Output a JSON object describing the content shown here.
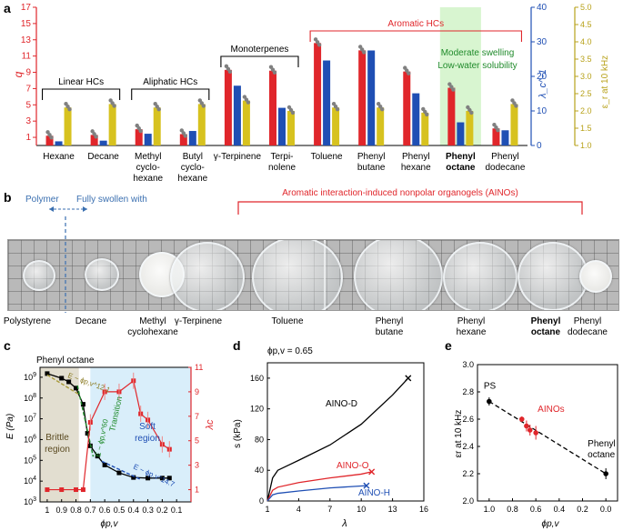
{
  "colors": {
    "red": "#e0262b",
    "blue": "#1f4fb4",
    "yellow": "#d7c21f",
    "gray": "#808080",
    "green_band": "#d8f5d0",
    "brown_band": "#e2ded0",
    "blue_band": "#d9eefa"
  },
  "panel_labels": {
    "a": "a",
    "b": "b",
    "c": "c",
    "d": "d",
    "e": "e"
  },
  "panel_a": {
    "ylabel_left": "q",
    "ylabel_mid": "λ_c^-1",
    "ylabel_right": "ε_r at 10 kHz",
    "left_ticks": [
      "1",
      "3",
      "5",
      "7",
      "9",
      "11",
      "13",
      "15",
      "17"
    ],
    "mid_ticks": [
      "0",
      "10",
      "20",
      "30",
      "40"
    ],
    "right_ticks": [
      "1.0",
      "1.5",
      "2.0",
      "2.5",
      "3.0",
      "3.5",
      "4.0",
      "4.5",
      "5.0"
    ],
    "groups": {
      "linear": "Linear HCs",
      "aliphatic": "Aliphatic HCs",
      "monoterpenes": "Monoterpenes",
      "aromatic": "Aromatic HCs"
    },
    "highlight_line1": "Moderate swelling",
    "highlight_line2": "Low-water solubility",
    "solvent_labels": [
      [
        "Hexane"
      ],
      [
        "Decane"
      ],
      [
        "Methyl",
        "cyclo-",
        "hexane"
      ],
      [
        "Butyl",
        "cyclo-",
        "hexane"
      ],
      [
        "γ-Terpinene"
      ],
      [
        "Terpi-",
        "nolene"
      ],
      [
        "Toluene"
      ],
      [
        "Phenyl",
        "butane"
      ],
      [
        "Phenyl",
        "hexane"
      ],
      [
        "Phenyl",
        "octane"
      ],
      [
        "Phenyl",
        "dodecane"
      ]
    ]
  },
  "panel_b": {
    "polymer": "Polymer",
    "swollen": "Fully swollen with",
    "aino_title": "Aromatic interaction-induced nonpolar organogels (AINOs)",
    "labels": [
      [
        "Polystyrene"
      ],
      [
        "Decane"
      ],
      [
        "Methyl",
        "cyclohexane"
      ],
      [
        "γ-Terpinene"
      ],
      [
        "Toluene"
      ],
      [
        "Phenyl",
        "butane"
      ],
      [
        "Phenyl",
        "hexane"
      ],
      [
        "Phenyl",
        "octane"
      ],
      [
        "Phenyl",
        "dodecane"
      ]
    ]
  },
  "panel_c": {
    "title": "Phenyl octane",
    "ylabel": "E (Pa)",
    "ylabel_right": "λc",
    "xlabel": "ϕp,v",
    "x_ticks": [
      "1",
      "0.9",
      "0.8",
      "0.7",
      "0.6",
      "0.5",
      "0.4",
      "0.3",
      "0.2",
      "0.1"
    ],
    "y_ticks": [
      "10^3",
      "10^4",
      "10^5",
      "10^6",
      "10^7",
      "10^8",
      "10^9"
    ],
    "right_ticks": [
      "1",
      "3",
      "5",
      "7",
      "9",
      "11"
    ],
    "brittle": [
      "Brittle",
      "region"
    ],
    "soft": [
      "Soft",
      "region"
    ],
    "transition": "Transition",
    "fit1_text": "E ~ ϕp,v^12.1",
    "fit2_text": "E ~ ϕp,v^60",
    "fit3_text": "E ~ ϕp,v^14.7"
  },
  "panel_d": {
    "annotation": "ϕp,v = 0.65",
    "ylabel": "s (kPa)",
    "xlabel": "λ",
    "x_ticks": [
      "1",
      "4",
      "7",
      "10",
      "13",
      "16"
    ],
    "y_ticks": [
      "0",
      "40",
      "80",
      "120",
      "160"
    ],
    "curves": [
      "AINO-D",
      "AINO-O",
      "AINO-H"
    ]
  },
  "panel_e": {
    "ylabel": "εr at 10 kHz",
    "xlabel": "ϕp,v",
    "x_ticks": [
      "1.0",
      "0.8",
      "0.6",
      "0.4",
      "0.2",
      "0.0"
    ],
    "y_ticks": [
      "2.0",
      "2.2",
      "2.4",
      "2.6",
      "2.8",
      "3.0"
    ],
    "labels": {
      "ps": "PS",
      "ainos": "AINOs",
      "po1": "Phenyl",
      "po2": "octane"
    }
  },
  "chart_data": [
    {
      "type": "bar",
      "panel": "a",
      "categories": [
        "Hexane",
        "Decane",
        "Methyl cyclohexane",
        "Butyl cyclohexane",
        "γ-Terpinene",
        "Terpinolene",
        "Toluene",
        "Phenyl butane",
        "Phenyl hexane",
        "Phenyl octane",
        "Phenyl dodecane"
      ],
      "series": [
        {
          "name": "q",
          "axis": "left",
          "values": [
            1.2,
            1.3,
            2.0,
            1.4,
            9.3,
            9.2,
            12.6,
            11.7,
            9.1,
            7.1,
            2.1
          ]
        },
        {
          "name": "λc^-1",
          "axis": "middle",
          "values": [
            1.2,
            1.4,
            3.4,
            4.2,
            17.3,
            10.9,
            24.6,
            27.5,
            15.1,
            6.7,
            4.4
          ]
        },
        {
          "name": "εr at 10 kHz",
          "axis": "right",
          "values": [
            2.1,
            2.2,
            2.1,
            2.2,
            2.3,
            2.0,
            2.1,
            2.1,
            1.95,
            2.0,
            2.2
          ]
        }
      ],
      "ylim_left": [
        0,
        17
      ],
      "ylim_middle": [
        0,
        40
      ],
      "ylim_right": [
        1.0,
        5.0
      ]
    },
    {
      "type": "line",
      "panel": "c",
      "series": [
        {
          "name": "E (Pa)",
          "axis": "left",
          "x": [
            1.0,
            0.9,
            0.85,
            0.8,
            0.75,
            0.72,
            0.7,
            0.65,
            0.6,
            0.5,
            0.4,
            0.3,
            0.2,
            0.15
          ],
          "y": [
            1500000000.0,
            900000000.0,
            600000000.0,
            300000000.0,
            50000000.0,
            2000000.0,
            500000.0,
            160000.0,
            60000.0,
            25000.0,
            15000.0,
            14000.0,
            14000.0,
            14000.0
          ]
        },
        {
          "name": "λc",
          "axis": "right",
          "x": [
            1.0,
            0.9,
            0.8,
            0.75,
            0.7,
            0.6,
            0.5,
            0.4,
            0.35,
            0.3,
            0.2,
            0.15
          ],
          "y": [
            1.0,
            1.0,
            1.0,
            1.0,
            6.5,
            9.0,
            9.0,
            9.9,
            7.2,
            6.7,
            4.7,
            4.3
          ]
        }
      ],
      "ylim_left": [
        1000.0,
        3000000000.0
      ],
      "ylim_right": [
        0,
        11
      ],
      "xlim": [
        1.05,
        0.0
      ]
    },
    {
      "type": "line",
      "panel": "d",
      "series": [
        {
          "name": "AINO-D",
          "x": [
            1,
            1.5,
            2,
            4,
            7,
            10,
            13,
            14.5
          ],
          "y": [
            0,
            30,
            40,
            53,
            73,
            100,
            138,
            160
          ]
        },
        {
          "name": "AINO-O",
          "x": [
            1,
            1.5,
            2,
            4,
            7,
            10,
            11
          ],
          "y": [
            0,
            14,
            18,
            24,
            30,
            35,
            38
          ]
        },
        {
          "name": "AINO-H",
          "x": [
            1,
            1.5,
            2,
            4,
            7,
            10.5
          ],
          "y": [
            0,
            8,
            10,
            13,
            17,
            20
          ]
        }
      ],
      "xlim": [
        1,
        16
      ],
      "ylim": [
        0,
        180
      ]
    },
    {
      "type": "scatter",
      "panel": "e",
      "series": [
        {
          "name": "PS",
          "x": [
            1.0
          ],
          "y": [
            2.73
          ],
          "err": [
            0.03
          ]
        },
        {
          "name": "AINOs",
          "x": [
            0.72,
            0.68,
            0.65,
            0.6
          ],
          "y": [
            2.6,
            2.55,
            2.52,
            2.5
          ],
          "err": [
            0.02,
            0.04,
            0.04,
            0.05
          ]
        },
        {
          "name": "Phenyl octane",
          "x": [
            0.0
          ],
          "y": [
            2.2
          ],
          "err": [
            0.04
          ]
        },
        {
          "name": "fit",
          "x": [
            1.0,
            0.0
          ],
          "y": [
            2.73,
            2.2
          ],
          "err": []
        }
      ],
      "xlim": [
        1.1,
        -0.1
      ],
      "ylim": [
        2.0,
        3.0
      ]
    }
  ]
}
